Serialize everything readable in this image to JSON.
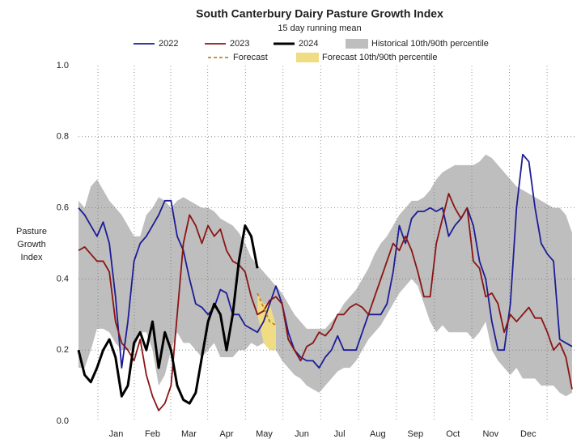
{
  "chart_data": {
    "type": "line",
    "title": "South Canterbury Dairy Pasture Growth Index",
    "subtitle": "15 day running mean",
    "ylabel": "Pasture Growth Index",
    "xlim": [
      -15,
      387
    ],
    "ylim": [
      0,
      1
    ],
    "xticks": [
      {
        "value": 15.5,
        "label": "Jan"
      },
      {
        "value": 45,
        "label": "Feb"
      },
      {
        "value": 74.5,
        "label": "Mar"
      },
      {
        "value": 105,
        "label": "Apr"
      },
      {
        "value": 135.5,
        "label": "May"
      },
      {
        "value": 166,
        "label": "Jun"
      },
      {
        "value": 196.5,
        "label": "Jul"
      },
      {
        "value": 227.5,
        "label": "Aug"
      },
      {
        "value": 258,
        "label": "Sep"
      },
      {
        "value": 288.5,
        "label": "Oct"
      },
      {
        "value": 319,
        "label": "Nov"
      },
      {
        "value": 349.5,
        "label": "Dec"
      }
    ],
    "yticks": [
      {
        "value": 0,
        "label": "0.0"
      },
      0.2,
      0.4,
      0.6,
      0.8,
      {
        "value": 1,
        "label": "1.0"
      }
    ],
    "grid": true,
    "x": [
      -15,
      -10,
      -5,
      0,
      5,
      10,
      15,
      20,
      25,
      30,
      35,
      40,
      45,
      50,
      55,
      60,
      65,
      70,
      75,
      80,
      85,
      90,
      95,
      100,
      105,
      110,
      115,
      120,
      125,
      130,
      135,
      140,
      145,
      150,
      155,
      160,
      165,
      170,
      175,
      180,
      185,
      190,
      195,
      200,
      205,
      210,
      215,
      220,
      225,
      230,
      235,
      240,
      245,
      250,
      255,
      260,
      265,
      270,
      275,
      280,
      285,
      290,
      295,
      300,
      305,
      310,
      315,
      320,
      325,
      330,
      335,
      340,
      345,
      350,
      355,
      360,
      365,
      370,
      375,
      380,
      385
    ],
    "bands": [
      {
        "name": "Historical 10th/90th percentile",
        "color": "#bebebe",
        "upper": [
          0.62,
          0.6,
          0.66,
          0.68,
          0.65,
          0.62,
          0.6,
          0.58,
          0.55,
          0.52,
          0.52,
          0.58,
          0.6,
          0.63,
          0.62,
          0.6,
          0.62,
          0.63,
          0.62,
          0.61,
          0.6,
          0.6,
          0.59,
          0.57,
          0.56,
          0.55,
          0.53,
          0.5,
          0.46,
          0.44,
          0.42,
          0.4,
          0.38,
          0.36,
          0.33,
          0.3,
          0.28,
          0.26,
          0.26,
          0.26,
          0.26,
          0.28,
          0.3,
          0.33,
          0.35,
          0.37,
          0.4,
          0.43,
          0.47,
          0.5,
          0.52,
          0.55,
          0.58,
          0.6,
          0.62,
          0.62,
          0.63,
          0.65,
          0.68,
          0.7,
          0.71,
          0.72,
          0.72,
          0.72,
          0.72,
          0.73,
          0.75,
          0.74,
          0.72,
          0.7,
          0.68,
          0.66,
          0.65,
          0.64,
          0.63,
          0.62,
          0.61,
          0.6,
          0.6,
          0.58,
          0.53
        ],
        "lower": [
          0.15,
          0.15,
          0.2,
          0.26,
          0.26,
          0.25,
          0.22,
          0.2,
          0.2,
          0.2,
          0.25,
          0.25,
          0.2,
          0.1,
          0.13,
          0.2,
          0.25,
          0.22,
          0.22,
          0.2,
          0.18,
          0.2,
          0.22,
          0.18,
          0.18,
          0.18,
          0.2,
          0.2,
          0.22,
          0.21,
          0.22,
          0.22,
          0.2,
          0.17,
          0.15,
          0.13,
          0.12,
          0.1,
          0.09,
          0.08,
          0.1,
          0.12,
          0.14,
          0.15,
          0.15,
          0.17,
          0.2,
          0.23,
          0.25,
          0.27,
          0.3,
          0.33,
          0.36,
          0.38,
          0.4,
          0.38,
          0.33,
          0.28,
          0.25,
          0.27,
          0.25,
          0.25,
          0.25,
          0.25,
          0.23,
          0.25,
          0.28,
          0.2,
          0.17,
          0.15,
          0.13,
          0.15,
          0.12,
          0.12,
          0.12,
          0.1,
          0.1,
          0.1,
          0.08,
          0.07,
          0.08
        ]
      },
      {
        "name": "Forecast 10th/90th percentile",
        "color": "#f0dc82",
        "upper": [
          null,
          null,
          null,
          null,
          null,
          null,
          null,
          null,
          null,
          null,
          null,
          null,
          null,
          null,
          null,
          null,
          null,
          null,
          null,
          null,
          null,
          null,
          null,
          null,
          null,
          null,
          null,
          null,
          null,
          0.36,
          0.33,
          0.33,
          0.27,
          null,
          null,
          null,
          null,
          null,
          null,
          null,
          null,
          null,
          null,
          null,
          null,
          null,
          null,
          null,
          null,
          null,
          null,
          null,
          null,
          null,
          null,
          null,
          null,
          null,
          null,
          null,
          null,
          null,
          null,
          null,
          null,
          null,
          null,
          null,
          null,
          null,
          null,
          null,
          null,
          null,
          null,
          null,
          null,
          null,
          null,
          null,
          null
        ],
        "lower": [
          null,
          null,
          null,
          null,
          null,
          null,
          null,
          null,
          null,
          null,
          null,
          null,
          null,
          null,
          null,
          null,
          null,
          null,
          null,
          null,
          null,
          null,
          null,
          null,
          null,
          null,
          null,
          null,
          null,
          0.3,
          0.22,
          0.2,
          0.2,
          null,
          null,
          null,
          null,
          null,
          null,
          null,
          null,
          null,
          null,
          null,
          null,
          null,
          null,
          null,
          null,
          null,
          null,
          null,
          null,
          null,
          null,
          null,
          null,
          null,
          null,
          null,
          null,
          null,
          null,
          null,
          null,
          null,
          null,
          null,
          null,
          null,
          null,
          null,
          null,
          null,
          null,
          null,
          null,
          null,
          null,
          null,
          null
        ]
      }
    ],
    "series": [
      {
        "name": "2022",
        "color": "#1c1c96",
        "values": [
          0.6,
          0.58,
          0.55,
          0.52,
          0.56,
          0.5,
          0.35,
          0.15,
          0.28,
          0.45,
          0.5,
          0.52,
          0.55,
          0.58,
          0.62,
          0.62,
          0.52,
          0.48,
          0.4,
          0.33,
          0.32,
          0.3,
          0.32,
          0.37,
          0.36,
          0.3,
          0.3,
          0.27,
          0.26,
          0.25,
          0.28,
          0.33,
          0.38,
          0.33,
          0.25,
          0.2,
          0.18,
          0.17,
          0.17,
          0.15,
          0.18,
          0.2,
          0.24,
          0.2,
          0.2,
          0.2,
          0.25,
          0.3,
          0.3,
          0.3,
          0.33,
          0.42,
          0.55,
          0.5,
          0.57,
          0.59,
          0.59,
          0.6,
          0.59,
          0.6,
          0.52,
          0.55,
          0.57,
          0.6,
          0.55,
          0.45,
          0.4,
          0.28,
          0.2,
          0.2,
          0.33,
          0.6,
          0.75,
          0.73,
          0.6,
          0.5,
          0.47,
          0.45,
          0.23,
          0.22,
          0.21
        ]
      },
      {
        "name": "2023",
        "color": "#8b1414",
        "values": [
          0.48,
          0.49,
          0.47,
          0.45,
          0.45,
          0.42,
          0.28,
          0.22,
          0.2,
          0.17,
          0.23,
          0.13,
          0.07,
          0.03,
          0.05,
          0.1,
          0.3,
          0.5,
          0.58,
          0.55,
          0.5,
          0.55,
          0.52,
          0.54,
          0.48,
          0.45,
          0.44,
          0.42,
          0.35,
          0.3,
          0.31,
          0.34,
          0.35,
          0.33,
          0.23,
          0.2,
          0.17,
          0.21,
          0.22,
          0.25,
          0.24,
          0.26,
          0.3,
          0.3,
          0.32,
          0.33,
          0.32,
          0.3,
          0.35,
          0.4,
          0.45,
          0.5,
          0.48,
          0.52,
          0.48,
          0.42,
          0.35,
          0.35,
          0.5,
          0.57,
          0.64,
          0.6,
          0.57,
          0.6,
          0.45,
          0.43,
          0.35,
          0.36,
          0.33,
          0.25,
          0.3,
          0.28,
          0.3,
          0.32,
          0.29,
          0.29,
          0.25,
          0.2,
          0.22,
          0.18,
          0.09
        ]
      },
      {
        "name": "2024",
        "color": "#000000",
        "width": 3,
        "values": [
          0.2,
          0.13,
          0.11,
          0.15,
          0.2,
          0.23,
          0.18,
          0.07,
          0.1,
          0.22,
          0.25,
          0.2,
          0.28,
          0.15,
          0.25,
          0.2,
          0.1,
          0.06,
          0.05,
          0.08,
          0.18,
          0.28,
          0.33,
          0.3,
          0.2,
          0.3,
          0.45,
          0.55,
          0.52,
          0.43,
          null,
          null,
          null,
          null,
          null,
          null,
          null,
          null,
          null,
          null,
          null,
          null,
          null,
          null,
          null,
          null,
          null,
          null,
          null,
          null,
          null,
          null,
          null,
          null,
          null,
          null,
          null,
          null,
          null,
          null,
          null,
          null,
          null,
          null,
          null,
          null,
          null,
          null,
          null,
          null,
          null,
          null,
          null,
          null,
          null,
          null,
          null,
          null,
          null,
          null,
          null
        ]
      },
      {
        "name": "Forecast",
        "color": "#b8862b",
        "dashed": true,
        "values": [
          null,
          null,
          null,
          null,
          null,
          null,
          null,
          null,
          null,
          null,
          null,
          null,
          null,
          null,
          null,
          null,
          null,
          null,
          null,
          null,
          null,
          null,
          null,
          null,
          null,
          null,
          null,
          null,
          null,
          0.36,
          0.32,
          0.28,
          0.27,
          null,
          null,
          null,
          null,
          null,
          null,
          null,
          null,
          null,
          null,
          null,
          null,
          null,
          null,
          null,
          null,
          null,
          null,
          null,
          null,
          null,
          null,
          null,
          null,
          null,
          null,
          null,
          null,
          null,
          null,
          null,
          null,
          null,
          null,
          null,
          null,
          null,
          null,
          null,
          null,
          null,
          null,
          null,
          null,
          null,
          null,
          null,
          null
        ]
      }
    ]
  }
}
